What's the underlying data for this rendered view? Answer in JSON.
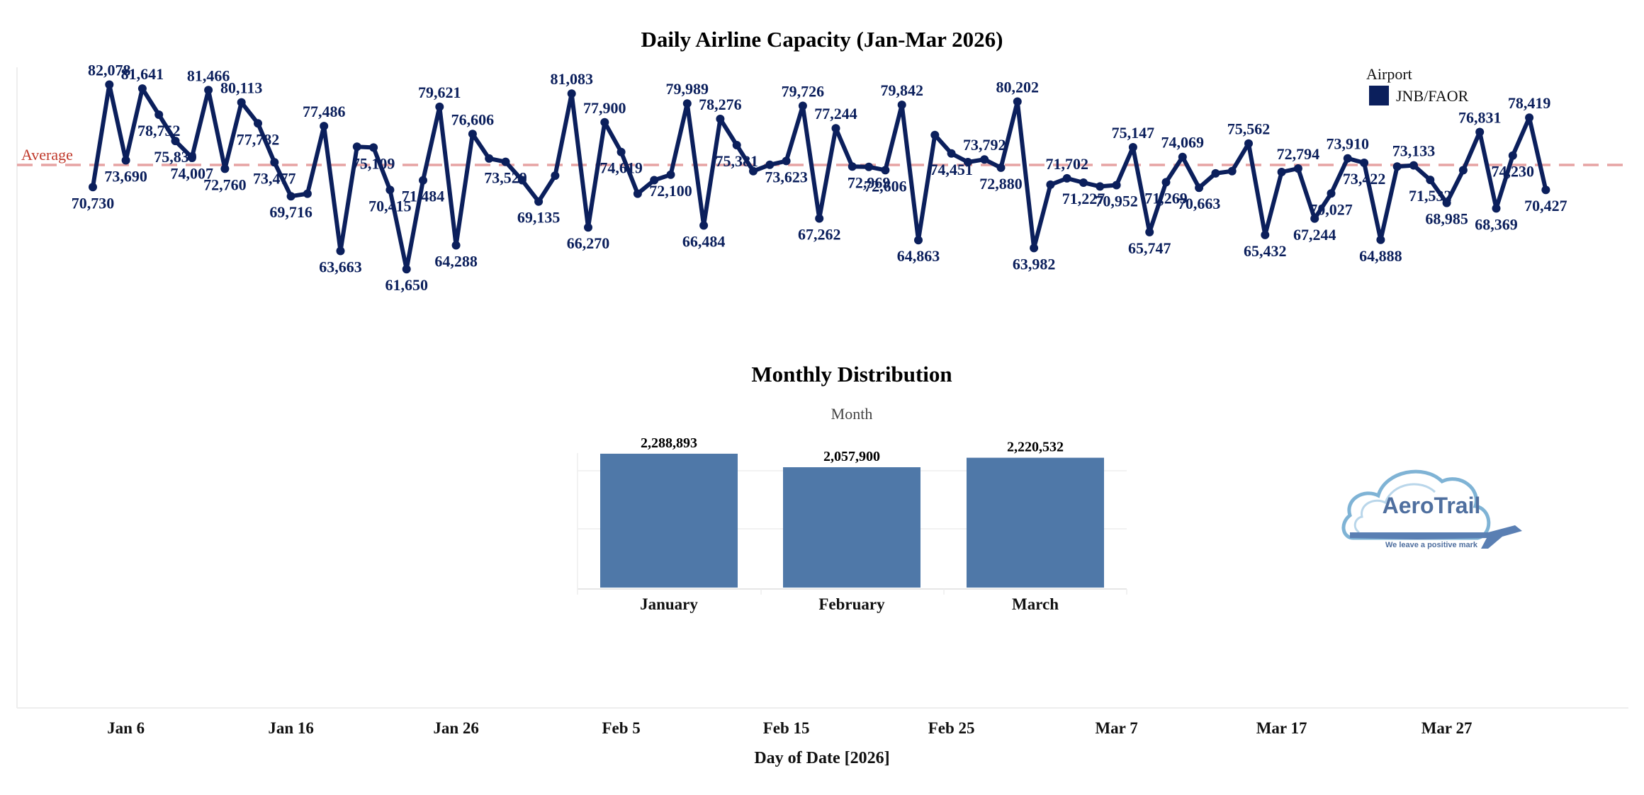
{
  "chart_data": [
    {
      "type": "line",
      "title": "Daily Airline Capacity (Jan-Mar 2026)",
      "xlabel": "Day of Date [2026]",
      "ylabel": "",
      "x_start": "2026-01-01",
      "x_ticks": [
        "Jan 6",
        "Jan 16",
        "Jan 26",
        "Feb 5",
        "Feb 15",
        "Feb 25",
        "Mar 7",
        "Mar 17",
        "Mar 27"
      ],
      "legend": {
        "title": "Airport",
        "position": "top-right",
        "entries": [
          {
            "name": "JNB/FAOR",
            "color": "#0b1f5c"
          }
        ]
      },
      "reference_line": {
        "label": "Average",
        "style": "dashed",
        "color": "#e6a3a3"
      },
      "ylim": [
        55000,
        84000
      ],
      "series": [
        {
          "name": "JNB/FAOR",
          "color": "#0b1f5c",
          "values": [
            70730,
            82078,
            73690,
            81641,
            78752,
            75839,
            74007,
            81466,
            72760,
            80113,
            77782,
            73477,
            69716,
            70000,
            77486,
            63663,
            75200,
            75109,
            70415,
            61650,
            71484,
            79621,
            64288,
            76606,
            73900,
            73529,
            71500,
            69135,
            72000,
            81083,
            66270,
            77900,
            74619,
            70000,
            71500,
            72100,
            79989,
            66484,
            78276,
            75381,
            72500,
            73200,
            73623,
            79726,
            67262,
            77244,
            73000,
            72969,
            72606,
            79842,
            64863,
            76500,
            74451,
            73500,
            73792,
            72880,
            80202,
            63982,
            71000,
            71702,
            71227,
            70800,
            70952,
            75147,
            65747,
            71269,
            74069,
            70663,
            72250,
            72500,
            75562,
            65432,
            72400,
            72794,
            67244,
            70027,
            73910,
            73422,
            64888,
            73000,
            73133,
            71532,
            68985,
            72600,
            76831,
            68369,
            74230,
            78419,
            70427
          ]
        }
      ]
    },
    {
      "type": "bar",
      "title": "Monthly Distribution",
      "header": "Month",
      "categories": [
        "January",
        "February",
        "March"
      ],
      "values": [
        2288893,
        2057900,
        2220532
      ],
      "value_labels": [
        "2,288,893",
        "2,057,900",
        "2,220,532"
      ],
      "color": "#4f78a8",
      "ylim": [
        0,
        2300000
      ]
    }
  ],
  "logo": {
    "text": "AeroTrail",
    "tagline": "We leave a positive mark"
  }
}
